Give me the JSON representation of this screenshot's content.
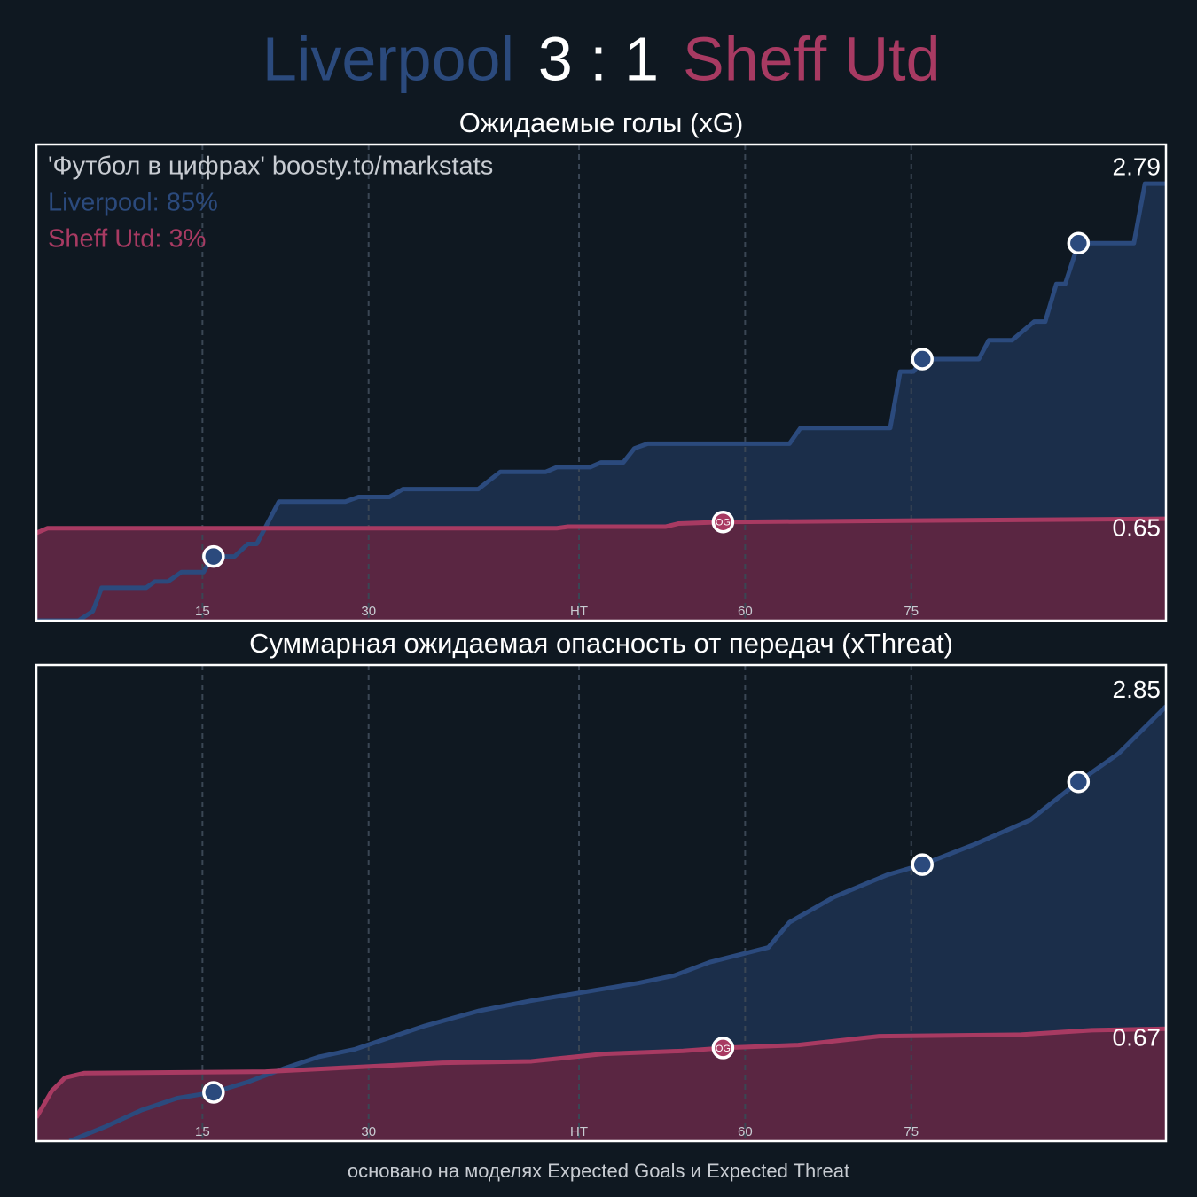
{
  "header": {
    "home": "Liverpool",
    "score": "3 : 1",
    "away": "Sheff Utd"
  },
  "footer": "основано на моделях Expected Goals и Expected Threat",
  "chart_data": [
    {
      "type": "line",
      "title": "Ожидаемые голы (xG)",
      "annotations": [
        "'Футбол в цифрах' boosty.to/markstats",
        "Liverpool: 85%",
        "Sheff Utd: 3%"
      ],
      "xlim": [
        0,
        102
      ],
      "ylim": [
        0,
        3.04
      ],
      "xticks": [
        15,
        30,
        {
          "value": 49,
          "label": "HT"
        },
        {
          "value": 64,
          "label": "60"
        },
        {
          "value": 79,
          "label": "75"
        }
      ],
      "grid": true,
      "series": [
        {
          "name": "Liverpool",
          "color": "#2b4a7d",
          "fill": "#1b2e4a",
          "x": [
            0,
            3.8,
            5.1,
            5.9,
            9.9,
            10.7,
            11.9,
            13.1,
            15.1,
            15.9,
            17.9,
            19.1,
            19.9,
            21.9,
            27.9,
            29.1,
            31.9,
            33.1,
            39.9,
            41.9,
            46.0,
            47.0,
            50.0,
            51.0,
            53.0,
            54.0,
            55.2,
            68.0,
            69.0,
            77.1,
            78.0,
            79.2,
            80.0,
            85.1,
            86.0,
            88.1,
            90.1,
            91.1,
            92.1,
            92.9,
            94.1,
            99.1,
            100.1,
            102
          ],
          "values": [
            0,
            0,
            0.06,
            0.21,
            0.21,
            0.25,
            0.25,
            0.31,
            0.31,
            0.41,
            0.41,
            0.49,
            0.49,
            0.76,
            0.76,
            0.79,
            0.79,
            0.84,
            0.84,
            0.95,
            0.95,
            0.98,
            0.98,
            1.01,
            1.01,
            1.1,
            1.13,
            1.13,
            1.23,
            1.23,
            1.59,
            1.59,
            1.67,
            1.67,
            1.79,
            1.79,
            1.91,
            1.91,
            2.15,
            2.15,
            2.41,
            2.41,
            2.79,
            2.79
          ],
          "goals_x": [
            16,
            80,
            94.1
          ],
          "goals_y": [
            0.41,
            1.67,
            2.41
          ]
        },
        {
          "name": "Sheff Utd",
          "color": "#a83a62",
          "fill": "#5a2642",
          "x": [
            0,
            1,
            47,
            48,
            56.8,
            58,
            62,
            102
          ],
          "values": [
            0.56,
            0.59,
            0.59,
            0.6,
            0.6,
            0.62,
            0.63,
            0.65
          ],
          "goals_x": [
            62
          ],
          "goals_y": [
            0.63
          ],
          "goal_labels": [
            "OG"
          ]
        }
      ]
    },
    {
      "type": "line",
      "title": "Суммарная ожидаемая опасность от передач (xThreat)",
      "xlim": [
        0,
        102
      ],
      "ylim": [
        -0.09,
        3.13
      ],
      "xticks": [
        15,
        30,
        {
          "value": 49,
          "label": "HT"
        },
        {
          "value": 64,
          "label": "60"
        },
        {
          "value": 79,
          "label": "75"
        }
      ],
      "grid": true,
      "series": [
        {
          "name": "Liverpool",
          "color": "#2b4a7d",
          "fill": "#1b2e4a",
          "x": [
            3.0,
            6.3,
            9.5,
            12.7,
            16,
            19.1,
            22.3,
            25.5,
            28.7,
            31.9,
            35.1,
            39.9,
            44.7,
            49.6,
            54.4,
            57.6,
            60.8,
            66.1,
            68,
            72,
            76.8,
            80.0,
            84.8,
            89.7,
            94.1,
            97.7,
            102
          ],
          "values": [
            -0.09,
            0.01,
            0.12,
            0.2,
            0.24,
            0.31,
            0.4,
            0.48,
            0.53,
            0.61,
            0.69,
            0.79,
            0.86,
            0.92,
            0.98,
            1.03,
            1.12,
            1.22,
            1.39,
            1.56,
            1.71,
            1.78,
            1.92,
            2.08,
            2.34,
            2.53,
            2.85
          ],
          "goals_x": [
            16,
            80,
            94.1
          ],
          "goals_y": [
            0.24,
            1.78,
            2.34
          ]
        },
        {
          "name": "Sheff Utd",
          "color": "#a83a62",
          "fill": "#5a2642",
          "x": [
            0,
            1.4,
            2.6,
            4.3,
            20.7,
            28.7,
            36.7,
            44.7,
            51.2,
            58.4,
            62,
            68.8,
            76.1,
            88.9,
            95.3,
            102
          ],
          "values": [
            0.07,
            0.25,
            0.34,
            0.37,
            0.38,
            0.41,
            0.44,
            0.45,
            0.5,
            0.52,
            0.54,
            0.56,
            0.62,
            0.63,
            0.66,
            0.67
          ],
          "goals_x": [
            62
          ],
          "goals_y": [
            0.54
          ],
          "goal_labels": [
            "OG"
          ]
        }
      ]
    }
  ]
}
